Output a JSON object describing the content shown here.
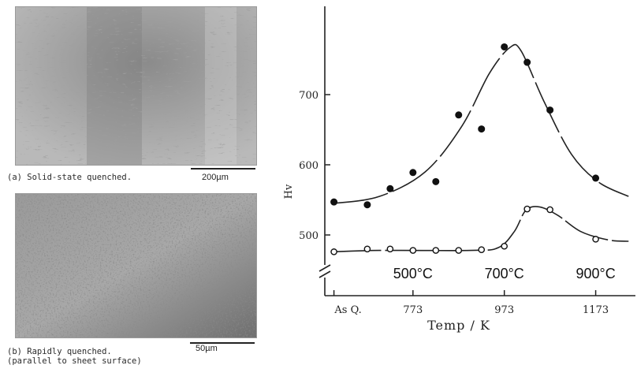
{
  "micrographs": [
    {
      "caption": "(a) Solid-state quenched.",
      "scale": "200µm"
    },
    {
      "caption": "(b) Rapidly quenched.",
      "caption2": "(parallel to sheet surface)",
      "scale": "50µm"
    }
  ],
  "chart_data": {
    "type": "scatter",
    "xlabel": "Temp / K",
    "ylabel": "Hv",
    "x_tick_labels": [
      "As Q.",
      "773",
      "973",
      "1173"
    ],
    "y_ticks": [
      500,
      600,
      700
    ],
    "ylim": [
      470,
      780
    ],
    "xlim": [
      580,
      1260
    ],
    "grid": false,
    "legend": "none",
    "celsius_labels": [
      {
        "text": "500°C",
        "x": 773
      },
      {
        "text": "700°C",
        "x": 973
      },
      {
        "text": "900°C",
        "x": 1173
      }
    ],
    "series": [
      {
        "marker": "filled-circle",
        "points": [
          {
            "x": 600,
            "y": 547
          },
          {
            "x": 673,
            "y": 543
          },
          {
            "x": 723,
            "y": 566
          },
          {
            "x": 773,
            "y": 589
          },
          {
            "x": 823,
            "y": 576
          },
          {
            "x": 873,
            "y": 671
          },
          {
            "x": 923,
            "y": 651
          },
          {
            "x": 973,
            "y": 768
          },
          {
            "x": 1023,
            "y": 746
          },
          {
            "x": 1073,
            "y": 678
          },
          {
            "x": 1173,
            "y": 581
          }
        ],
        "curve": [
          {
            "x": 600,
            "y": 545
          },
          {
            "x": 700,
            "y": 555
          },
          {
            "x": 800,
            "y": 590
          },
          {
            "x": 880,
            "y": 655
          },
          {
            "x": 940,
            "y": 730
          },
          {
            "x": 985,
            "y": 767
          },
          {
            "x": 1010,
            "y": 762
          },
          {
            "x": 1060,
            "y": 690
          },
          {
            "x": 1120,
            "y": 615
          },
          {
            "x": 1180,
            "y": 575
          },
          {
            "x": 1245,
            "y": 555
          }
        ]
      },
      {
        "marker": "open-circle",
        "points": [
          {
            "x": 600,
            "y": 476
          },
          {
            "x": 673,
            "y": 480
          },
          {
            "x": 723,
            "y": 480
          },
          {
            "x": 773,
            "y": 478
          },
          {
            "x": 823,
            "y": 478
          },
          {
            "x": 873,
            "y": 478
          },
          {
            "x": 923,
            "y": 479
          },
          {
            "x": 973,
            "y": 484
          },
          {
            "x": 1023,
            "y": 537
          },
          {
            "x": 1073,
            "y": 536
          },
          {
            "x": 1173,
            "y": 494
          }
        ],
        "curve": [
          {
            "x": 600,
            "y": 476
          },
          {
            "x": 700,
            "y": 478
          },
          {
            "x": 900,
            "y": 478
          },
          {
            "x": 960,
            "y": 482
          },
          {
            "x": 995,
            "y": 505
          },
          {
            "x": 1020,
            "y": 535
          },
          {
            "x": 1050,
            "y": 540
          },
          {
            "x": 1090,
            "y": 528
          },
          {
            "x": 1140,
            "y": 505
          },
          {
            "x": 1200,
            "y": 493
          },
          {
            "x": 1245,
            "y": 491
          }
        ]
      }
    ]
  }
}
